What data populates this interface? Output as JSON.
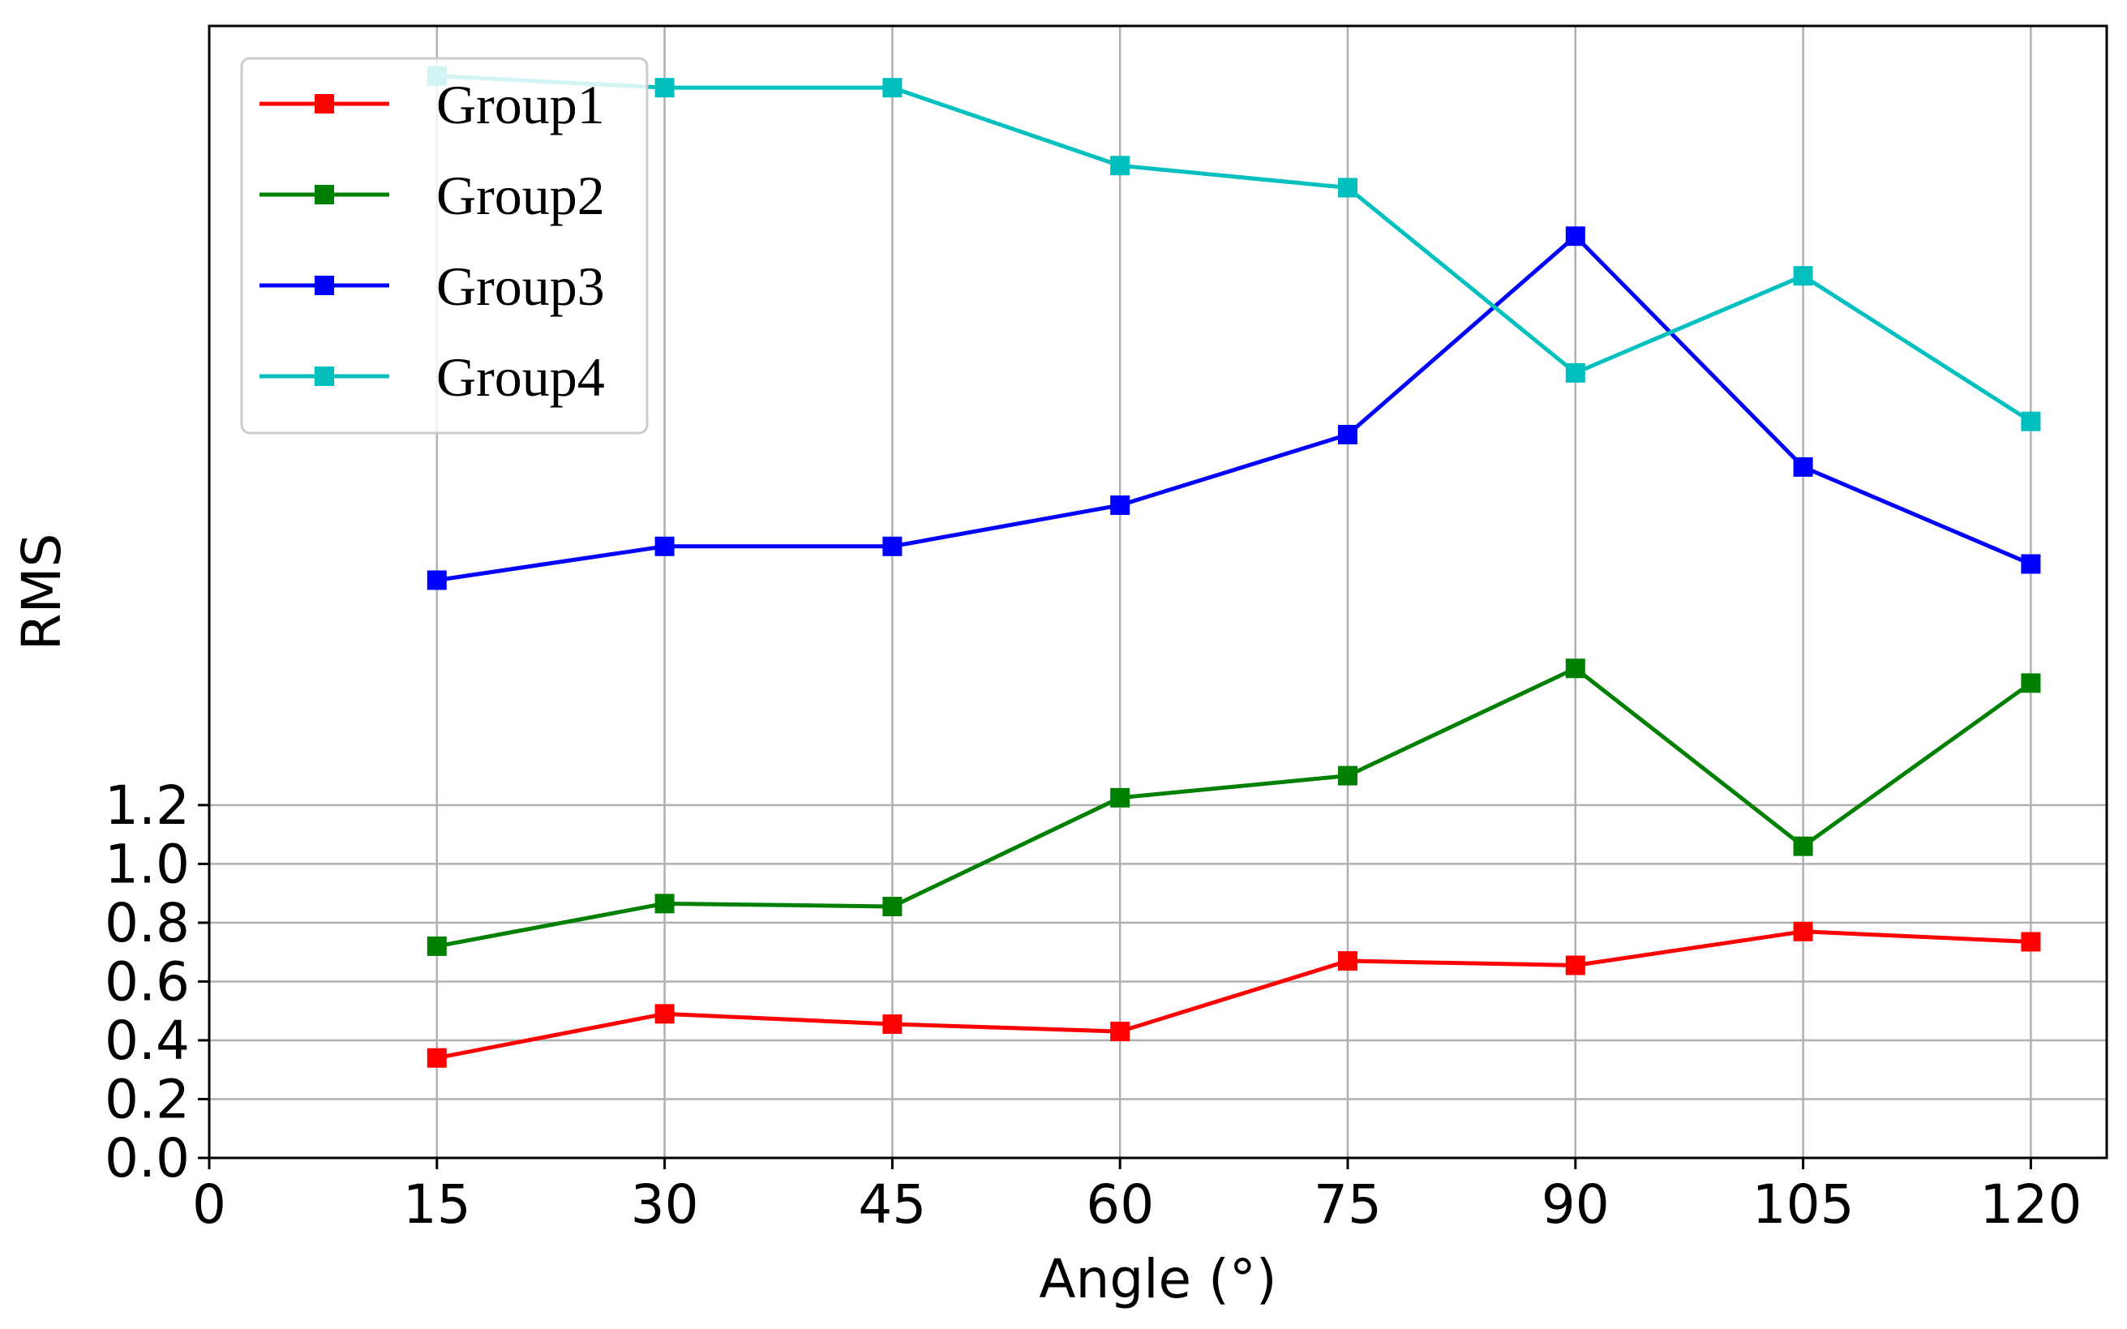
{
  "chart_data": {
    "type": "line",
    "title": "",
    "xlabel": "Angle (°)",
    "ylabel": "RMS",
    "xlim": [
      0,
      125
    ],
    "ylim": [
      0,
      3.85
    ],
    "xticks": [
      "0",
      "15",
      "30",
      "45",
      "60",
      "75",
      "90",
      "105",
      "120"
    ],
    "yticks": [
      "0.0",
      "0.2",
      "0.4",
      "0.6",
      "0.8",
      "1.0",
      "1.2"
    ],
    "grid": true,
    "legend_position": "upper-left",
    "x": [
      15,
      30,
      45,
      60,
      75,
      90,
      105,
      120
    ],
    "series": [
      {
        "name": "Group1",
        "color": "#ff0000",
        "marker": "square",
        "values": [
          0.34,
          0.49,
          0.455,
          0.43,
          0.67,
          0.655,
          0.77,
          0.735
        ]
      },
      {
        "name": "Group2",
        "color": "#008000",
        "marker": "square",
        "values": [
          0.72,
          0.865,
          0.855,
          1.225,
          1.3,
          1.665,
          1.06,
          1.615
        ]
      },
      {
        "name": "Group3",
        "color": "#0000ff",
        "marker": "square",
        "values": [
          1.965,
          2.08,
          2.08,
          2.22,
          2.46,
          3.135,
          2.35,
          2.02
        ]
      },
      {
        "name": "Group4",
        "color": "#00bfbf",
        "marker": "square",
        "values": [
          3.68,
          3.64,
          3.64,
          3.375,
          3.3,
          2.67,
          3.0,
          2.505
        ]
      }
    ]
  }
}
